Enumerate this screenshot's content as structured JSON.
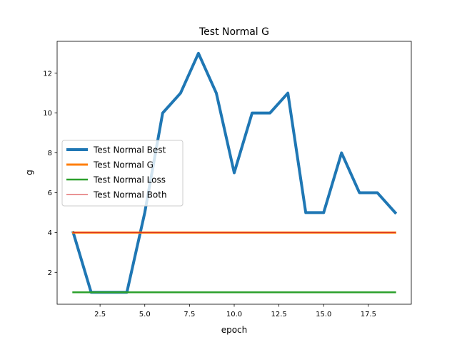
{
  "chart_data": {
    "type": "line",
    "title": "Test Normal G",
    "xlabel": "epoch",
    "ylabel": "g",
    "xlim": [
      0.1,
      19.9
    ],
    "ylim": [
      0.4,
      13.6
    ],
    "xticks": [
      2.5,
      5.0,
      7.5,
      10.0,
      12.5,
      15.0,
      17.5
    ],
    "xtick_labels": [
      "2.5",
      "5.0",
      "7.5",
      "10.0",
      "12.5",
      "15.0",
      "17.5"
    ],
    "yticks": [
      2,
      4,
      6,
      8,
      10,
      12
    ],
    "ytick_labels": [
      "2",
      "4",
      "6",
      "8",
      "10",
      "12"
    ],
    "grid": false,
    "legend_position": "center-left",
    "x": [
      1,
      2,
      3,
      4,
      5,
      6,
      7,
      8,
      9,
      10,
      11,
      12,
      13,
      14,
      15,
      16,
      17,
      18,
      19
    ],
    "series": [
      {
        "name": "Test Normal Best",
        "color": "#1f77b4",
        "values": [
          4,
          1,
          1,
          1,
          5,
          10,
          11,
          13,
          11,
          7,
          10,
          10,
          11,
          5,
          5,
          8,
          6,
          6,
          5
        ]
      },
      {
        "name": "Test Normal G",
        "color": "#ff7f0e",
        "values": [
          4,
          4,
          4,
          4,
          4,
          4,
          4,
          4,
          4,
          4,
          4,
          4,
          4,
          4,
          4,
          4,
          4,
          4,
          4
        ]
      },
      {
        "name": "Test Normal Loss",
        "color": "#2ca02c",
        "values": [
          1,
          1,
          1,
          1,
          1,
          1,
          1,
          1,
          1,
          1,
          1,
          1,
          1,
          1,
          1,
          1,
          1,
          1,
          1
        ]
      },
      {
        "name": "Test Normal Both",
        "color": "#d62728",
        "values": [
          4,
          4,
          4,
          4,
          4,
          4,
          4,
          4,
          4,
          4,
          4,
          4,
          4,
          4,
          4,
          4,
          4,
          4,
          4
        ]
      }
    ]
  }
}
